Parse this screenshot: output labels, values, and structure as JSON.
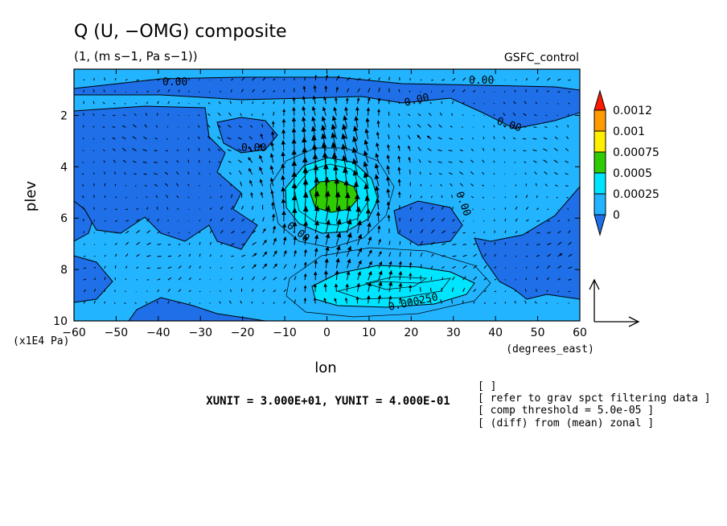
{
  "chart_data": {
    "type": "contour",
    "title": "Q (U, −OMG) composite",
    "subtitle": "(1, (m s−1, Pa s−1))",
    "dataset_label": "GSFC_control",
    "xlabel": "lon",
    "x_units": "(degrees_east)",
    "ylabel": "plev",
    "y_units": "(x1E4 Pa)",
    "x_ticks": [
      -60,
      -50,
      -40,
      -30,
      -20,
      -10,
      0,
      10,
      20,
      30,
      40,
      50,
      60
    ],
    "y_ticks": [
      2,
      4,
      6,
      8,
      10
    ],
    "xlim": [
      -60,
      60
    ],
    "ylim": [
      10,
      0.2
    ],
    "y_inverted": true,
    "colorbar": {
      "levels": [
        "0",
        "0.00025",
        "0.0005",
        "0.00075",
        "0.001",
        "0.0012"
      ],
      "colors": [
        "#1e6fe8",
        "#22b4ff",
        "#00e5ff",
        "#2ecc00",
        "#ffee00",
        "#ff9a00",
        "#ff1a00"
      ]
    },
    "contour_labels": [
      "0.00",
      "0.00",
      "0.00",
      "0.00",
      "0.00",
      "0.00",
      "0.00",
      "0.000250"
    ],
    "features": [
      {
        "name": "core maximum",
        "lon": 3,
        "plev": 5.0,
        "level": "0.0005–0.00075"
      },
      {
        "name": "lower maximum",
        "lon": 15,
        "plev": 9.0,
        "level": "0.00025–0.0005"
      }
    ],
    "vector_reference": "XUNIT = 3.000E+01, YUNIT = 4.000E-01"
  },
  "notes": [
    "[  ]",
    "[ refer to grav spct filtering data ]",
    "[ comp threshold = 5.0e-05 ]",
    "[ (diff) from (mean) zonal ]"
  ]
}
